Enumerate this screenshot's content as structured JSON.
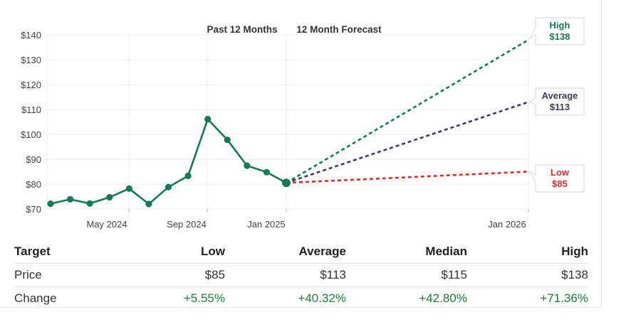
{
  "chart_data": {
    "type": "line",
    "tabs": [
      "Past 12 Months",
      "12 Month Forecast"
    ],
    "y_ticks": [
      "$140",
      "$130",
      "$120",
      "$110",
      "$100",
      "$90",
      "$80",
      "$70"
    ],
    "ylim": [
      70,
      140
    ],
    "x_ticks": [
      "May 2024",
      "Sep 2024",
      "Jan 2025",
      "Jan 2026"
    ],
    "series": [
      {
        "values": [
          72.1,
          73.9,
          72.2,
          74.7,
          78.2,
          72.0,
          78.8,
          83.3,
          106.1,
          97.8,
          87.4,
          84.8,
          80.5
        ]
      }
    ],
    "forecast": {
      "start": 80.5,
      "high": {
        "label": "High",
        "value_label": "$138",
        "value": 138,
        "color": "#157a56"
      },
      "average": {
        "label": "Average",
        "value_label": "$113",
        "value": 113,
        "color": "#3d3d55"
      },
      "low": {
        "label": "Low",
        "value_label": "$85",
        "value": 85,
        "color": "#d32f2f"
      }
    },
    "colors": {
      "history": "#157a56",
      "grid": "#ececec"
    }
  },
  "table": {
    "headers": [
      "Target",
      "Low",
      "Average",
      "Median",
      "High"
    ],
    "rows": [
      [
        "Price",
        "$85",
        "$113",
        "$115",
        "$138"
      ],
      [
        "Change",
        "+5.55%",
        "+40.32%",
        "+42.80%",
        "+71.36%"
      ]
    ]
  }
}
